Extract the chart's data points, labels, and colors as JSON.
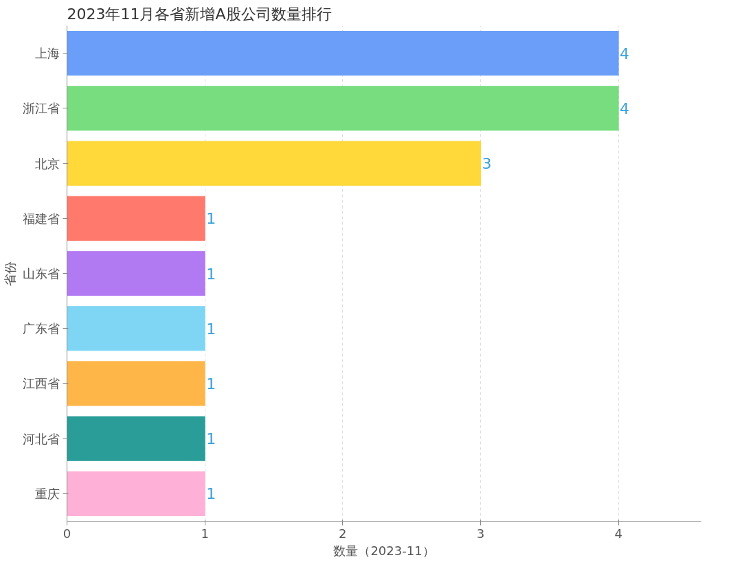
{
  "chart_data": {
    "type": "bar",
    "orientation": "horizontal",
    "title": "2023年11月各省新增A股公司数量排行",
    "xlabel": "数量（2023-11）",
    "ylabel": "省份",
    "categories": [
      "上海",
      "浙江省",
      "北京",
      "福建省",
      "山东省",
      "广东省",
      "江西省",
      "河北省",
      "重庆"
    ],
    "values": [
      4,
      4,
      3,
      1,
      1,
      1,
      1,
      1,
      1
    ],
    "colors": [
      "#6a9ef8",
      "#77dd7e",
      "#ffd83a",
      "#ff7a6c",
      "#b27af2",
      "#7fd6f4",
      "#ffb648",
      "#2a9d98",
      "#ffb0d6"
    ],
    "xlim": [
      0,
      4.6
    ],
    "xticks": [
      0,
      1,
      2,
      3,
      4
    ],
    "grid": "x",
    "data_labels": true
  }
}
